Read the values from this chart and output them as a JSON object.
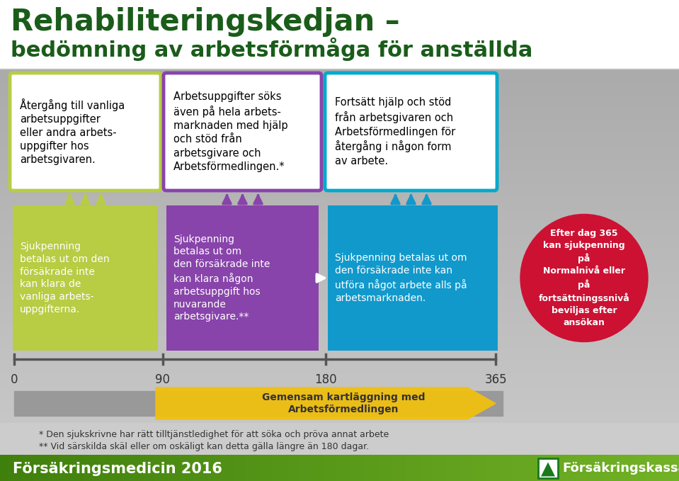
{
  "title_line1": "Rehabiliteringskedjan –",
  "title_line2": "bedömning av arbetsförmåga för anställda",
  "title_color": "#1a5c1a",
  "bg_color": "#ffffff",
  "gray_bg": "#b0b0b0",
  "box1_text": "Återgång till vanliga\narbetsuppgifter\neller andra arbets-\nuppgifter hos\narbetsgivaren.",
  "box1_border": "#b8cc44",
  "box1_bg": "#ffffff",
  "box2_text": "Arbetsuppgifter söks\näven på hela arbets-\nmarknaden med hjälp\noch stöd från\narbetsgivare och\nArbetsförmedlingen.*",
  "box2_border": "#8844aa",
  "box2_bg": "#ffffff",
  "box3_text": "Fortsätt hjälp och stöd\nfrån arbetsgivaren och\nArbetsförmedlingen för\nåtergång i någon form\nav arbete.",
  "box3_border": "#00aacc",
  "box3_bg": "#ffffff",
  "lower_box1_text": "Sjukpenning\nbetalas ut om den\nförsäkrade inte\nkan klara de\nvanliga arbets-\nuppgifterna.",
  "lower_box1_fill": "#b8cc44",
  "lower_box2_text": "Sjukpenning\nbetalas ut om\nden försäkrade inte\nkan klara någon\narbetsuppgift hos\nnuvarande\narbetsgivare.**",
  "lower_box2_fill": "#8844aa",
  "lower_box3_text": "Sjukpenning betalas ut om\nden försäkrade inte kan\nutföra något arbete alls på\narbetsmarknaden.",
  "lower_box3_fill": "#1199cc",
  "circle_text": "Efter dag 365\nkan sjukpenning\npå\nNormalnivå eller\npå\nfortsättningssnivå\nbeviljas efter\nansökan",
  "circle_bg": "#cc1133",
  "circle_text_color": "#ffffff",
  "arrow1_color": "#b8cc44",
  "arrow2_color": "#8844aa",
  "arrow3_color": "#1199cc",
  "timeline_color": "#555555",
  "triangle_fill": "#f0c010",
  "triangle_label": "Gemensam kartläggning med\nArbetsförmedlingen",
  "footnote1": "* Den sjukskrivne har rätt tilltjänstledighet för att söka och pröva annat arbete",
  "footnote2": "** Vid särskilda skäl eller om oskäligt kan detta gälla längre än 180 dagar.",
  "footer_left_text": "Försäkringsmedicin 2016",
  "footer_right_text": "Försäkringskassan"
}
